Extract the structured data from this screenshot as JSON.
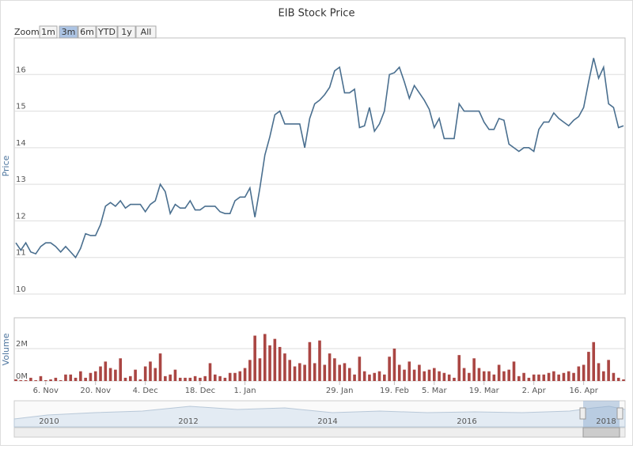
{
  "title": "EIB Stock Price",
  "zoom": {
    "label": "Zoom",
    "buttons": [
      "1m",
      "3m",
      "6m",
      "YTD",
      "1y",
      "All"
    ],
    "selected": 1
  },
  "navigator": {
    "labels": [
      "2010",
      "2012",
      "2014",
      "2016",
      "2018"
    ]
  },
  "chart_data": [
    {
      "type": "line",
      "y_label": "Price",
      "color": "#4a6f8f",
      "xlim": [
        0,
        122
      ],
      "ylim": [
        10,
        17
      ],
      "yticks": [
        10,
        11,
        12,
        13,
        14,
        15,
        16
      ],
      "grid": true,
      "values": [
        11.4,
        11.2,
        11.4,
        11.15,
        11.1,
        11.3,
        11.4,
        11.4,
        11.3,
        11.15,
        11.3,
        11.15,
        11.0,
        11.25,
        11.65,
        11.6,
        11.6,
        11.9,
        12.4,
        12.5,
        12.4,
        12.55,
        12.35,
        12.45,
        12.45,
        12.45,
        12.25,
        12.45,
        12.55,
        13.0,
        12.8,
        12.2,
        12.45,
        12.35,
        12.35,
        12.55,
        12.3,
        12.3,
        12.4,
        12.4,
        12.4,
        12.25,
        12.2,
        12.2,
        12.55,
        12.65,
        12.65,
        12.9,
        12.1,
        12.9,
        13.8,
        14.3,
        14.9,
        15.0,
        14.65,
        14.65,
        14.65,
        14.65,
        14.0,
        14.8,
        15.2,
        15.3,
        15.45,
        15.65,
        16.1,
        16.2,
        15.5,
        15.5,
        15.6,
        14.55,
        14.6,
        15.1,
        14.45,
        14.65,
        15.0,
        16.0,
        16.05,
        16.2,
        15.8,
        15.35,
        15.7,
        15.5,
        15.3,
        15.05,
        14.55,
        14.8,
        14.25,
        14.25,
        14.25,
        15.2,
        15.0,
        15.0,
        15.0,
        15.0,
        14.7,
        14.5,
        14.5,
        14.8,
        14.75,
        14.1,
        14.0,
        13.9,
        14.0,
        14.0,
        13.9,
        14.5,
        14.7,
        14.7,
        14.95,
        14.8,
        14.7,
        14.6,
        14.75,
        14.85,
        15.1,
        15.8,
        16.45,
        15.9,
        16.2,
        15.2,
        15.1,
        14.55,
        14.6
      ]
    },
    {
      "type": "bar",
      "y_label": "Volume",
      "color": "#aa4643",
      "xlim": [
        0,
        122
      ],
      "ylim": [
        0,
        3.9
      ],
      "yticks": [
        {
          "value": 0,
          "label": "0M"
        },
        {
          "value": 2,
          "label": "2M"
        }
      ],
      "grid": true,
      "xticks": [
        {
          "value": 6,
          "label": "6. Nov"
        },
        {
          "value": 16,
          "label": "20. Nov"
        },
        {
          "value": 26,
          "label": "4. Dec"
        },
        {
          "value": 37,
          "label": "18. Dec"
        },
        {
          "value": 46,
          "label": "1. Jan"
        },
        {
          "value": 65,
          "label": "29. Jan"
        },
        {
          "value": 76,
          "label": "19. Feb"
        },
        {
          "value": 84,
          "label": "5. Mar"
        },
        {
          "value": 94,
          "label": "19. Mar"
        },
        {
          "value": 104,
          "label": "2. Apr"
        },
        {
          "value": 114,
          "label": "16. Apr"
        }
      ],
      "values": [
        0.1,
        0.05,
        0.05,
        0.2,
        0.05,
        0.3,
        0.05,
        0.1,
        0.2,
        0.05,
        0.4,
        0.4,
        0.2,
        0.6,
        0.2,
        0.5,
        0.6,
        0.9,
        1.2,
        0.8,
        0.7,
        1.4,
        0.2,
        0.3,
        0.7,
        0.1,
        0.9,
        1.2,
        0.8,
        1.7,
        0.3,
        0.4,
        0.7,
        0.2,
        0.2,
        0.2,
        0.3,
        0.2,
        0.3,
        1.1,
        0.4,
        0.3,
        0.2,
        0.5,
        0.5,
        0.6,
        0.8,
        1.3,
        2.8,
        1.4,
        2.9,
        2.2,
        2.6,
        2.1,
        1.7,
        1.3,
        0.9,
        1.1,
        1.0,
        2.4,
        1.1,
        2.5,
        1.0,
        1.7,
        1.4,
        1.0,
        1.1,
        0.8,
        0.4,
        1.5,
        0.6,
        0.4,
        0.5,
        0.6,
        0.4,
        1.5,
        2.0,
        1.0,
        0.7,
        1.2,
        0.7,
        1.0,
        0.6,
        0.7,
        0.8,
        0.6,
        0.5,
        0.4,
        0.2,
        1.6,
        0.8,
        0.5,
        1.4,
        0.8,
        0.6,
        0.6,
        0.4,
        1.0,
        0.6,
        0.7,
        1.2,
        0.3,
        0.5,
        0.2,
        0.4,
        0.4,
        0.4,
        0.5,
        0.6,
        0.4,
        0.5,
        0.6,
        0.5,
        0.9,
        1.0,
        1.8,
        2.4,
        1.1,
        0.6,
        1.3,
        0.5,
        0.2,
        0.1
      ]
    }
  ]
}
